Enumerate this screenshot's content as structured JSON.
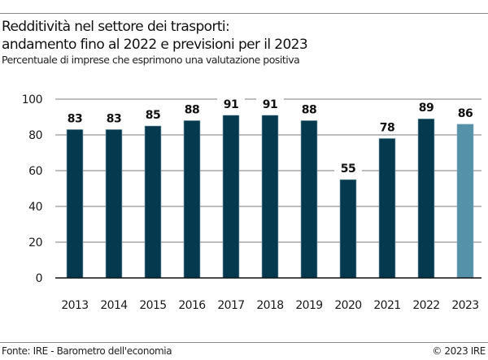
{
  "header": {
    "title_line1": "Redditività nel settore dei trasporti:",
    "title_line2": "andamento fino al 2022 e previsioni per il 2023",
    "subtitle": "Percentuale di imprese che esprimono una valutazione positiva"
  },
  "footer": {
    "source": "Fonte: IRE - Barometro dell'economia",
    "copyright": "© 2023 IRE"
  },
  "chart_data": {
    "type": "bar",
    "title": "Redditività nel settore dei trasporti: andamento fino al 2022 e previsioni per il 2023",
    "subtitle": "Percentuale di imprese che esprimono una valutazione positiva",
    "xlabel": "",
    "ylabel": "",
    "categories": [
      "2013",
      "2014",
      "2015",
      "2016",
      "2017",
      "2018",
      "2019",
      "2020",
      "2021",
      "2022",
      "2023"
    ],
    "values": [
      83,
      83,
      85,
      88,
      91,
      91,
      88,
      55,
      78,
      89,
      86
    ],
    "data_labels": [
      "83",
      "83",
      "85",
      "88",
      "91",
      "91",
      "88",
      "55",
      "78",
      "89",
      "86"
    ],
    "forecast": [
      false,
      false,
      false,
      false,
      false,
      false,
      false,
      false,
      false,
      false,
      true
    ],
    "ylim": [
      0,
      100
    ],
    "yticks": [
      0,
      20,
      40,
      60,
      80,
      100
    ],
    "grid": true,
    "legend": "none",
    "colors": {
      "actual": "#053a4e",
      "forecast": "#5592aa",
      "grid": "#7a7a7a",
      "axis": "#111111"
    }
  }
}
